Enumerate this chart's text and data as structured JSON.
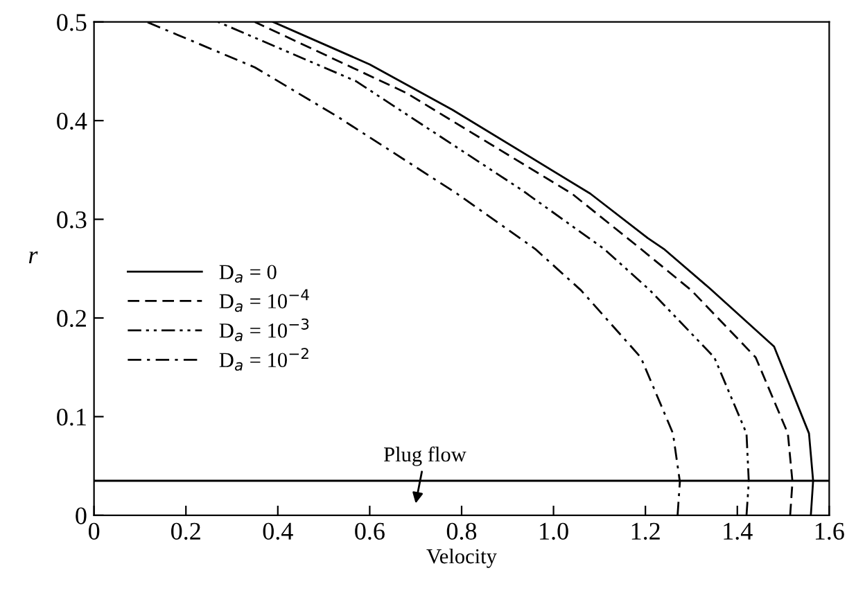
{
  "chart_data": {
    "type": "line",
    "xlabel": "Velocity",
    "ylabel": "r",
    "xlim": [
      0,
      1.6
    ],
    "ylim": [
      0,
      0.5
    ],
    "xticks": [
      0,
      0.2,
      0.4,
      0.6,
      0.8,
      {
        "value": 1,
        "label": "1.0"
      },
      1.2,
      1.4,
      1.6
    ],
    "yticks": [
      0,
      0.1,
      0.2,
      0.3,
      0.4,
      0.5
    ],
    "grid": false,
    "legend": "left",
    "marker": "none",
    "series": [
      {
        "name": "D$_{a}$ = 0",
        "color": "#000000",
        "line_style": "solid",
        "x": [
          1.56,
          1.565,
          1.556,
          1.48,
          1.34,
          1.24,
          1.205,
          1.08,
          0.78,
          0.6,
          0.39
        ],
        "values": [
          0,
          0.035,
          0.083,
          0.171,
          0.23,
          0.27,
          0.281,
          0.326,
          0.411,
          0.457,
          0.5
        ]
      },
      {
        "name": "D$_{a}$ = 10$^{−4}$",
        "color": "#000000",
        "line_style": "dashed",
        "x": [
          1.515,
          1.52,
          1.51,
          1.44,
          1.3,
          1.19,
          1.04,
          0.68,
          0.35
        ],
        "values": [
          0,
          0.034,
          0.083,
          0.16,
          0.228,
          0.27,
          0.326,
          0.428,
          0.5
        ]
      },
      {
        "name": "D$_{a}$ = 10$^{−3}$",
        "color": "#000000",
        "line_style": "dashdotdot",
        "x": [
          1.42,
          1.425,
          1.42,
          1.35,
          1.21,
          1.11,
          0.93,
          0.57,
          0.27
        ],
        "values": [
          0,
          0.034,
          0.083,
          0.16,
          0.228,
          0.27,
          0.33,
          0.44,
          0.5
        ]
      },
      {
        "name": "D$_{a}$ = 10$^{−2}$",
        "color": "#000000",
        "line_style": "dashdot",
        "x": [
          1.27,
          1.275,
          1.26,
          1.19,
          1.06,
          0.96,
          0.79,
          0.53,
          0.35,
          0.115
        ],
        "values": [
          0,
          0.034,
          0.083,
          0.16,
          0.228,
          0.27,
          0.326,
          0.404,
          0.454,
          0.5
        ]
      }
    ],
    "ref_lines": [
      {
        "axis": "y",
        "value": 0.035,
        "color": "#000000",
        "line_style": "solid"
      }
    ],
    "annotations": [
      "Plug flow"
    ]
  }
}
